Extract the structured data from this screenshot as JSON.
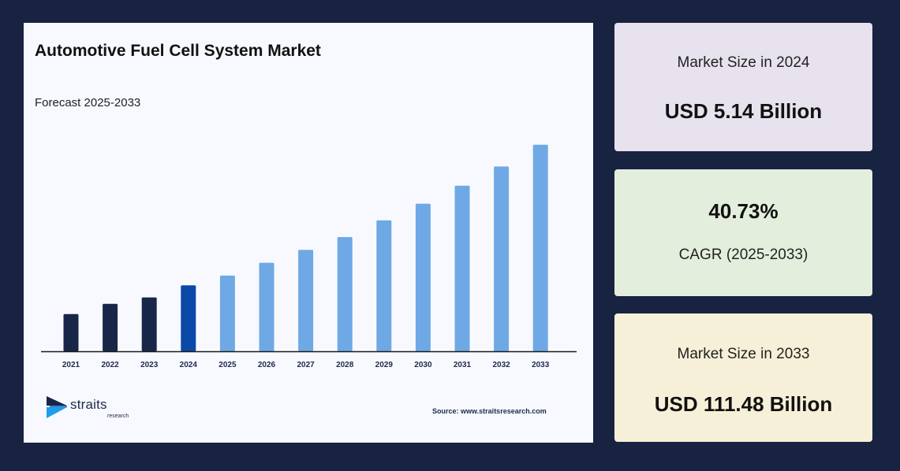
{
  "chart_panel": {
    "title": "Automotive Fuel Cell System Market",
    "subtitle": "Forecast 2025-2033",
    "source": "Source: www.straitsresearch.com",
    "logo_text": "straits",
    "logo_subtext": "research"
  },
  "chart_data": {
    "type": "bar",
    "title": "Automotive Fuel Cell System Market",
    "subtitle": "Forecast 2025-2033",
    "categories": [
      "2021",
      "2022",
      "2023",
      "2024",
      "2025",
      "2026",
      "2027",
      "2028",
      "2029",
      "2030",
      "2031",
      "2032",
      "2033"
    ],
    "values": [
      2.9,
      3.7,
      4.2,
      5.14,
      5.9,
      6.9,
      7.9,
      8.9,
      10.2,
      11.5,
      12.9,
      14.4,
      16.1
    ],
    "value_scale": "relative bar height (unlabeled axis)",
    "colors": [
      "#182748",
      "#182748",
      "#182748",
      "#0b49a8",
      "#6ea9e6",
      "#6ea9e6",
      "#6ea9e6",
      "#6ea9e6",
      "#6ea9e6",
      "#6ea9e6",
      "#6ea9e6",
      "#6ea9e6",
      "#6ea9e6"
    ],
    "ylim": [
      0,
      17
    ],
    "grid": false,
    "xlabel": "",
    "ylabel": ""
  },
  "cards": [
    {
      "label": "Market Size in 2024",
      "value": "USD 5.14 Billion"
    },
    {
      "value": "40.73%",
      "label": "CAGR (2025-2033)"
    },
    {
      "label": "Market Size in 2033",
      "value": "USD 111.48 Billion"
    }
  ],
  "colors": {
    "background": "#182241",
    "panel": "#f8f9fe",
    "card_1": "#e8e2ee",
    "card_2": "#e4eedc",
    "card_3": "#f7f0d8",
    "historic_bar": "#182748",
    "base_year_bar": "#0b49a8",
    "forecast_bar": "#6ea9e6"
  },
  "icons": {
    "logo": "straits-logo-icon"
  }
}
